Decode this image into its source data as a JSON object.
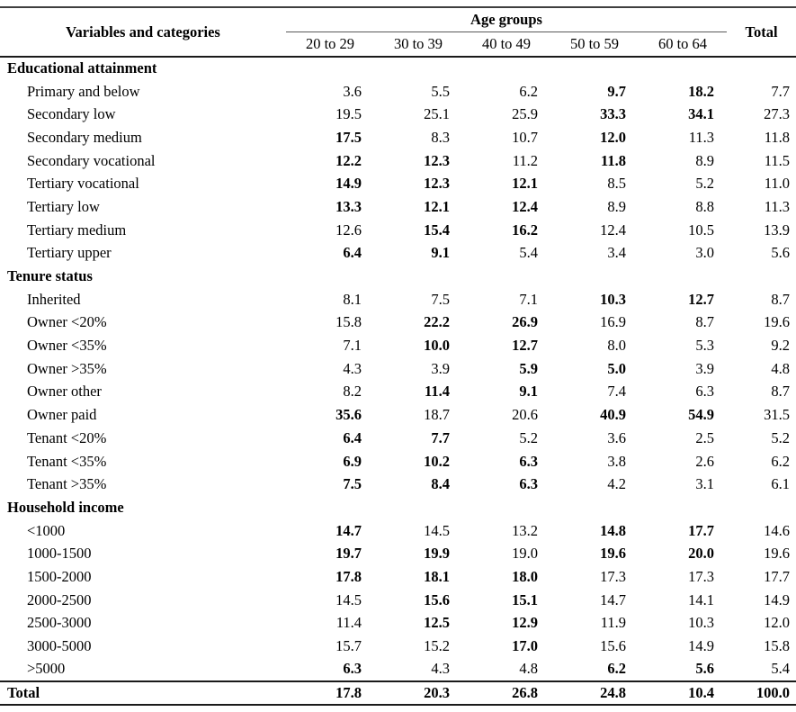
{
  "colors": {
    "background": "#ffffff",
    "text": "#000000",
    "rule": "#1a1a1a"
  },
  "table": {
    "header": {
      "variables_label": "Variables and categories",
      "age_groups_label": "Age groups",
      "age_columns": [
        "20 to 29",
        "30 to 39",
        "40 to 49",
        "50 to 59",
        "60 to 64"
      ],
      "total_label": "Total"
    },
    "sections": [
      {
        "title": "Educational attainment",
        "rows": [
          {
            "label": "Primary and below",
            "values": [
              "3.6",
              "5.5",
              "6.2",
              "9.7",
              "18.2",
              "7.7"
            ],
            "bold": [
              0,
              0,
              0,
              1,
              1,
              0
            ]
          },
          {
            "label": "Secondary low",
            "values": [
              "19.5",
              "25.1",
              "25.9",
              "33.3",
              "34.1",
              "27.3"
            ],
            "bold": [
              0,
              0,
              0,
              1,
              1,
              0
            ]
          },
          {
            "label": "Secondary medium",
            "values": [
              "17.5",
              "8.3",
              "10.7",
              "12.0",
              "11.3",
              "11.8"
            ],
            "bold": [
              1,
              0,
              0,
              1,
              0,
              0
            ]
          },
          {
            "label": "Secondary vocational",
            "values": [
              "12.2",
              "12.3",
              "11.2",
              "11.8",
              "8.9",
              "11.5"
            ],
            "bold": [
              1,
              1,
              0,
              1,
              0,
              0
            ]
          },
          {
            "label": "Tertiary vocational",
            "values": [
              "14.9",
              "12.3",
              "12.1",
              "8.5",
              "5.2",
              "11.0"
            ],
            "bold": [
              1,
              1,
              1,
              0,
              0,
              0
            ]
          },
          {
            "label": "Tertiary low",
            "values": [
              "13.3",
              "12.1",
              "12.4",
              "8.9",
              "8.8",
              "11.3"
            ],
            "bold": [
              1,
              1,
              1,
              0,
              0,
              0
            ]
          },
          {
            "label": "Tertiary medium",
            "values": [
              "12.6",
              "15.4",
              "16.2",
              "12.4",
              "10.5",
              "13.9"
            ],
            "bold": [
              0,
              1,
              1,
              0,
              0,
              0
            ]
          },
          {
            "label": "Tertiary upper",
            "values": [
              "6.4",
              "9.1",
              "5.4",
              "3.4",
              "3.0",
              "5.6"
            ],
            "bold": [
              1,
              1,
              0,
              0,
              0,
              0
            ]
          }
        ]
      },
      {
        "title": "Tenure status",
        "rows": [
          {
            "label": "Inherited",
            "values": [
              "8.1",
              "7.5",
              "7.1",
              "10.3",
              "12.7",
              "8.7"
            ],
            "bold": [
              0,
              0,
              0,
              1,
              1,
              0
            ]
          },
          {
            "label": "Owner <20%",
            "values": [
              "15.8",
              "22.2",
              "26.9",
              "16.9",
              "8.7",
              "19.6"
            ],
            "bold": [
              0,
              1,
              1,
              0,
              0,
              0
            ]
          },
          {
            "label": "Owner <35%",
            "values": [
              "7.1",
              "10.0",
              "12.7",
              "8.0",
              "5.3",
              "9.2"
            ],
            "bold": [
              0,
              1,
              1,
              0,
              0,
              0
            ]
          },
          {
            "label": "Owner >35%",
            "values": [
              "4.3",
              "3.9",
              "5.9",
              "5.0",
              "3.9",
              "4.8"
            ],
            "bold": [
              0,
              0,
              1,
              1,
              0,
              0
            ]
          },
          {
            "label": "Owner other",
            "values": [
              "8.2",
              "11.4",
              "9.1",
              "7.4",
              "6.3",
              "8.7"
            ],
            "bold": [
              0,
              1,
              1,
              0,
              0,
              0
            ]
          },
          {
            "label": "Owner paid",
            "values": [
              "35.6",
              "18.7",
              "20.6",
              "40.9",
              "54.9",
              "31.5"
            ],
            "bold": [
              1,
              0,
              0,
              1,
              1,
              0
            ]
          },
          {
            "label": "Tenant <20%",
            "values": [
              "6.4",
              "7.7",
              "5.2",
              "3.6",
              "2.5",
              "5.2"
            ],
            "bold": [
              1,
              1,
              0,
              0,
              0,
              0
            ]
          },
          {
            "label": "Tenant <35%",
            "values": [
              "6.9",
              "10.2",
              "6.3",
              "3.8",
              "2.6",
              "6.2"
            ],
            "bold": [
              1,
              1,
              1,
              0,
              0,
              0
            ]
          },
          {
            "label": "Tenant >35%",
            "values": [
              "7.5",
              "8.4",
              "6.3",
              "4.2",
              "3.1",
              "6.1"
            ],
            "bold": [
              1,
              1,
              1,
              0,
              0,
              0
            ]
          }
        ]
      },
      {
        "title": "Household income",
        "rows": [
          {
            "label": "<1000",
            "values": [
              "14.7",
              "14.5",
              "13.2",
              "14.8",
              "17.7",
              "14.6"
            ],
            "bold": [
              1,
              0,
              0,
              1,
              1,
              0
            ]
          },
          {
            "label": "1000-1500",
            "values": [
              "19.7",
              "19.9",
              "19.0",
              "19.6",
              "20.0",
              "19.6"
            ],
            "bold": [
              1,
              1,
              0,
              1,
              1,
              0
            ]
          },
          {
            "label": "1500-2000",
            "values": [
              "17.8",
              "18.1",
              "18.0",
              "17.3",
              "17.3",
              "17.7"
            ],
            "bold": [
              1,
              1,
              1,
              0,
              0,
              0
            ]
          },
          {
            "label": "2000-2500",
            "values": [
              "14.5",
              "15.6",
              "15.1",
              "14.7",
              "14.1",
              "14.9"
            ],
            "bold": [
              0,
              1,
              1,
              0,
              0,
              0
            ]
          },
          {
            "label": "2500-3000",
            "values": [
              "11.4",
              "12.5",
              "12.9",
              "11.9",
              "10.3",
              "12.0"
            ],
            "bold": [
              0,
              1,
              1,
              0,
              0,
              0
            ]
          },
          {
            "label": "3000-5000",
            "values": [
              "15.7",
              "15.2",
              "17.0",
              "15.6",
              "14.9",
              "15.8"
            ],
            "bold": [
              0,
              0,
              1,
              0,
              0,
              0
            ]
          },
          {
            "label": ">5000",
            "values": [
              "6.3",
              "4.3",
              "4.8",
              "6.2",
              "5.6",
              "5.4"
            ],
            "bold": [
              1,
              0,
              0,
              1,
              1,
              0
            ]
          }
        ]
      }
    ],
    "total_row": {
      "label": "Total",
      "values": [
        "17.8",
        "20.3",
        "26.8",
        "24.8",
        "10.4",
        "100.0"
      ],
      "bold": [
        1,
        1,
        1,
        1,
        1,
        1
      ]
    }
  }
}
